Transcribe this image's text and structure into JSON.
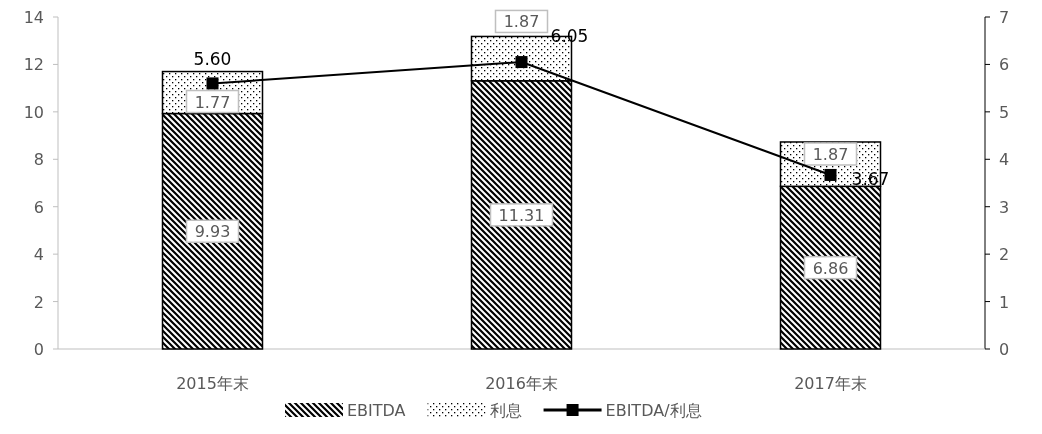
{
  "chart_data": {
    "type": "bar",
    "stacked": true,
    "categories": [
      "2015年末",
      "2016年末",
      "2017年末"
    ],
    "series": [
      {
        "name": "EBITDA",
        "color": "#000000",
        "values": [
          9.93,
          11.31,
          6.86
        ],
        "value_labels": [
          "9.93",
          "11.31",
          "6.86"
        ]
      },
      {
        "name": "利息",
        "color": "#000000",
        "values": [
          1.77,
          1.87,
          1.87
        ],
        "value_labels": [
          "1.77",
          "1.87",
          "1.87"
        ]
      },
      {
        "name": "EBITDA/利息",
        "type": "line",
        "axis": "y2",
        "color": "#000000",
        "values": [
          5.6,
          6.05,
          3.67
        ],
        "value_labels": [
          "5.60",
          "6.05",
          "3.67"
        ]
      }
    ],
    "ylim": [
      0,
      14
    ],
    "yticks": [
      0,
      2,
      4,
      6,
      8,
      10,
      12,
      14
    ],
    "y2lim": [
      0,
      7
    ],
    "y2ticks": [
      0,
      1,
      2,
      3,
      4,
      5,
      6,
      7
    ],
    "legend": "bottom",
    "marker": "square",
    "line_style": "solid",
    "grid": false
  }
}
